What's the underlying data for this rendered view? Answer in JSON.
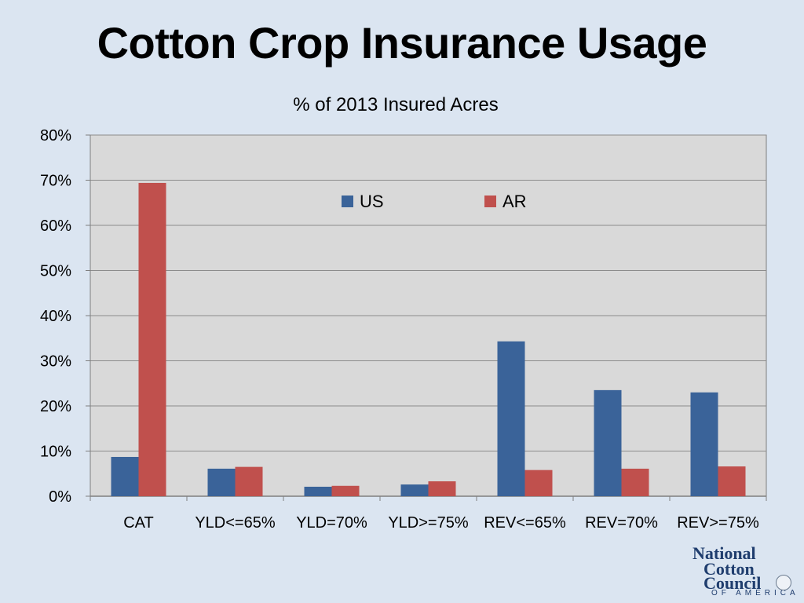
{
  "slide": {
    "title": "Cotton Crop Insurance Usage",
    "subtitle": "% of 2013 Insured Acres"
  },
  "logo": {
    "line1": "National",
    "line2": "Cotton",
    "line3": "Council",
    "line4": "OF AMERICA",
    "seal_icon": "seal-icon"
  },
  "colors": {
    "background": "#dbe5f1",
    "plot_area": "#d9d9d9",
    "us": "#3a6399",
    "ar": "#c0504d",
    "grid": "#8c8c8c"
  },
  "chart_data": {
    "type": "bar",
    "title": "% of 2013 Insured Acres",
    "categories": [
      "CAT",
      "YLD<=65%",
      "YLD=70%",
      "YLD>=75%",
      "REV<=65%",
      "REV=70%",
      "REV>=75%"
    ],
    "series": [
      {
        "name": "US",
        "color": "#3a6399",
        "values": [
          8.7,
          6.1,
          2.1,
          2.6,
          34.3,
          23.5,
          23.0
        ]
      },
      {
        "name": "AR",
        "color": "#c0504d",
        "values": [
          69.4,
          6.5,
          2.3,
          3.3,
          5.8,
          6.1,
          6.6
        ]
      }
    ],
    "yticks": [
      "0%",
      "10%",
      "20%",
      "30%",
      "40%",
      "50%",
      "60%",
      "70%",
      "80%"
    ],
    "ylim": [
      0,
      80
    ],
    "xlabel": "",
    "ylabel": "",
    "grid": true,
    "legend": "top-center"
  }
}
